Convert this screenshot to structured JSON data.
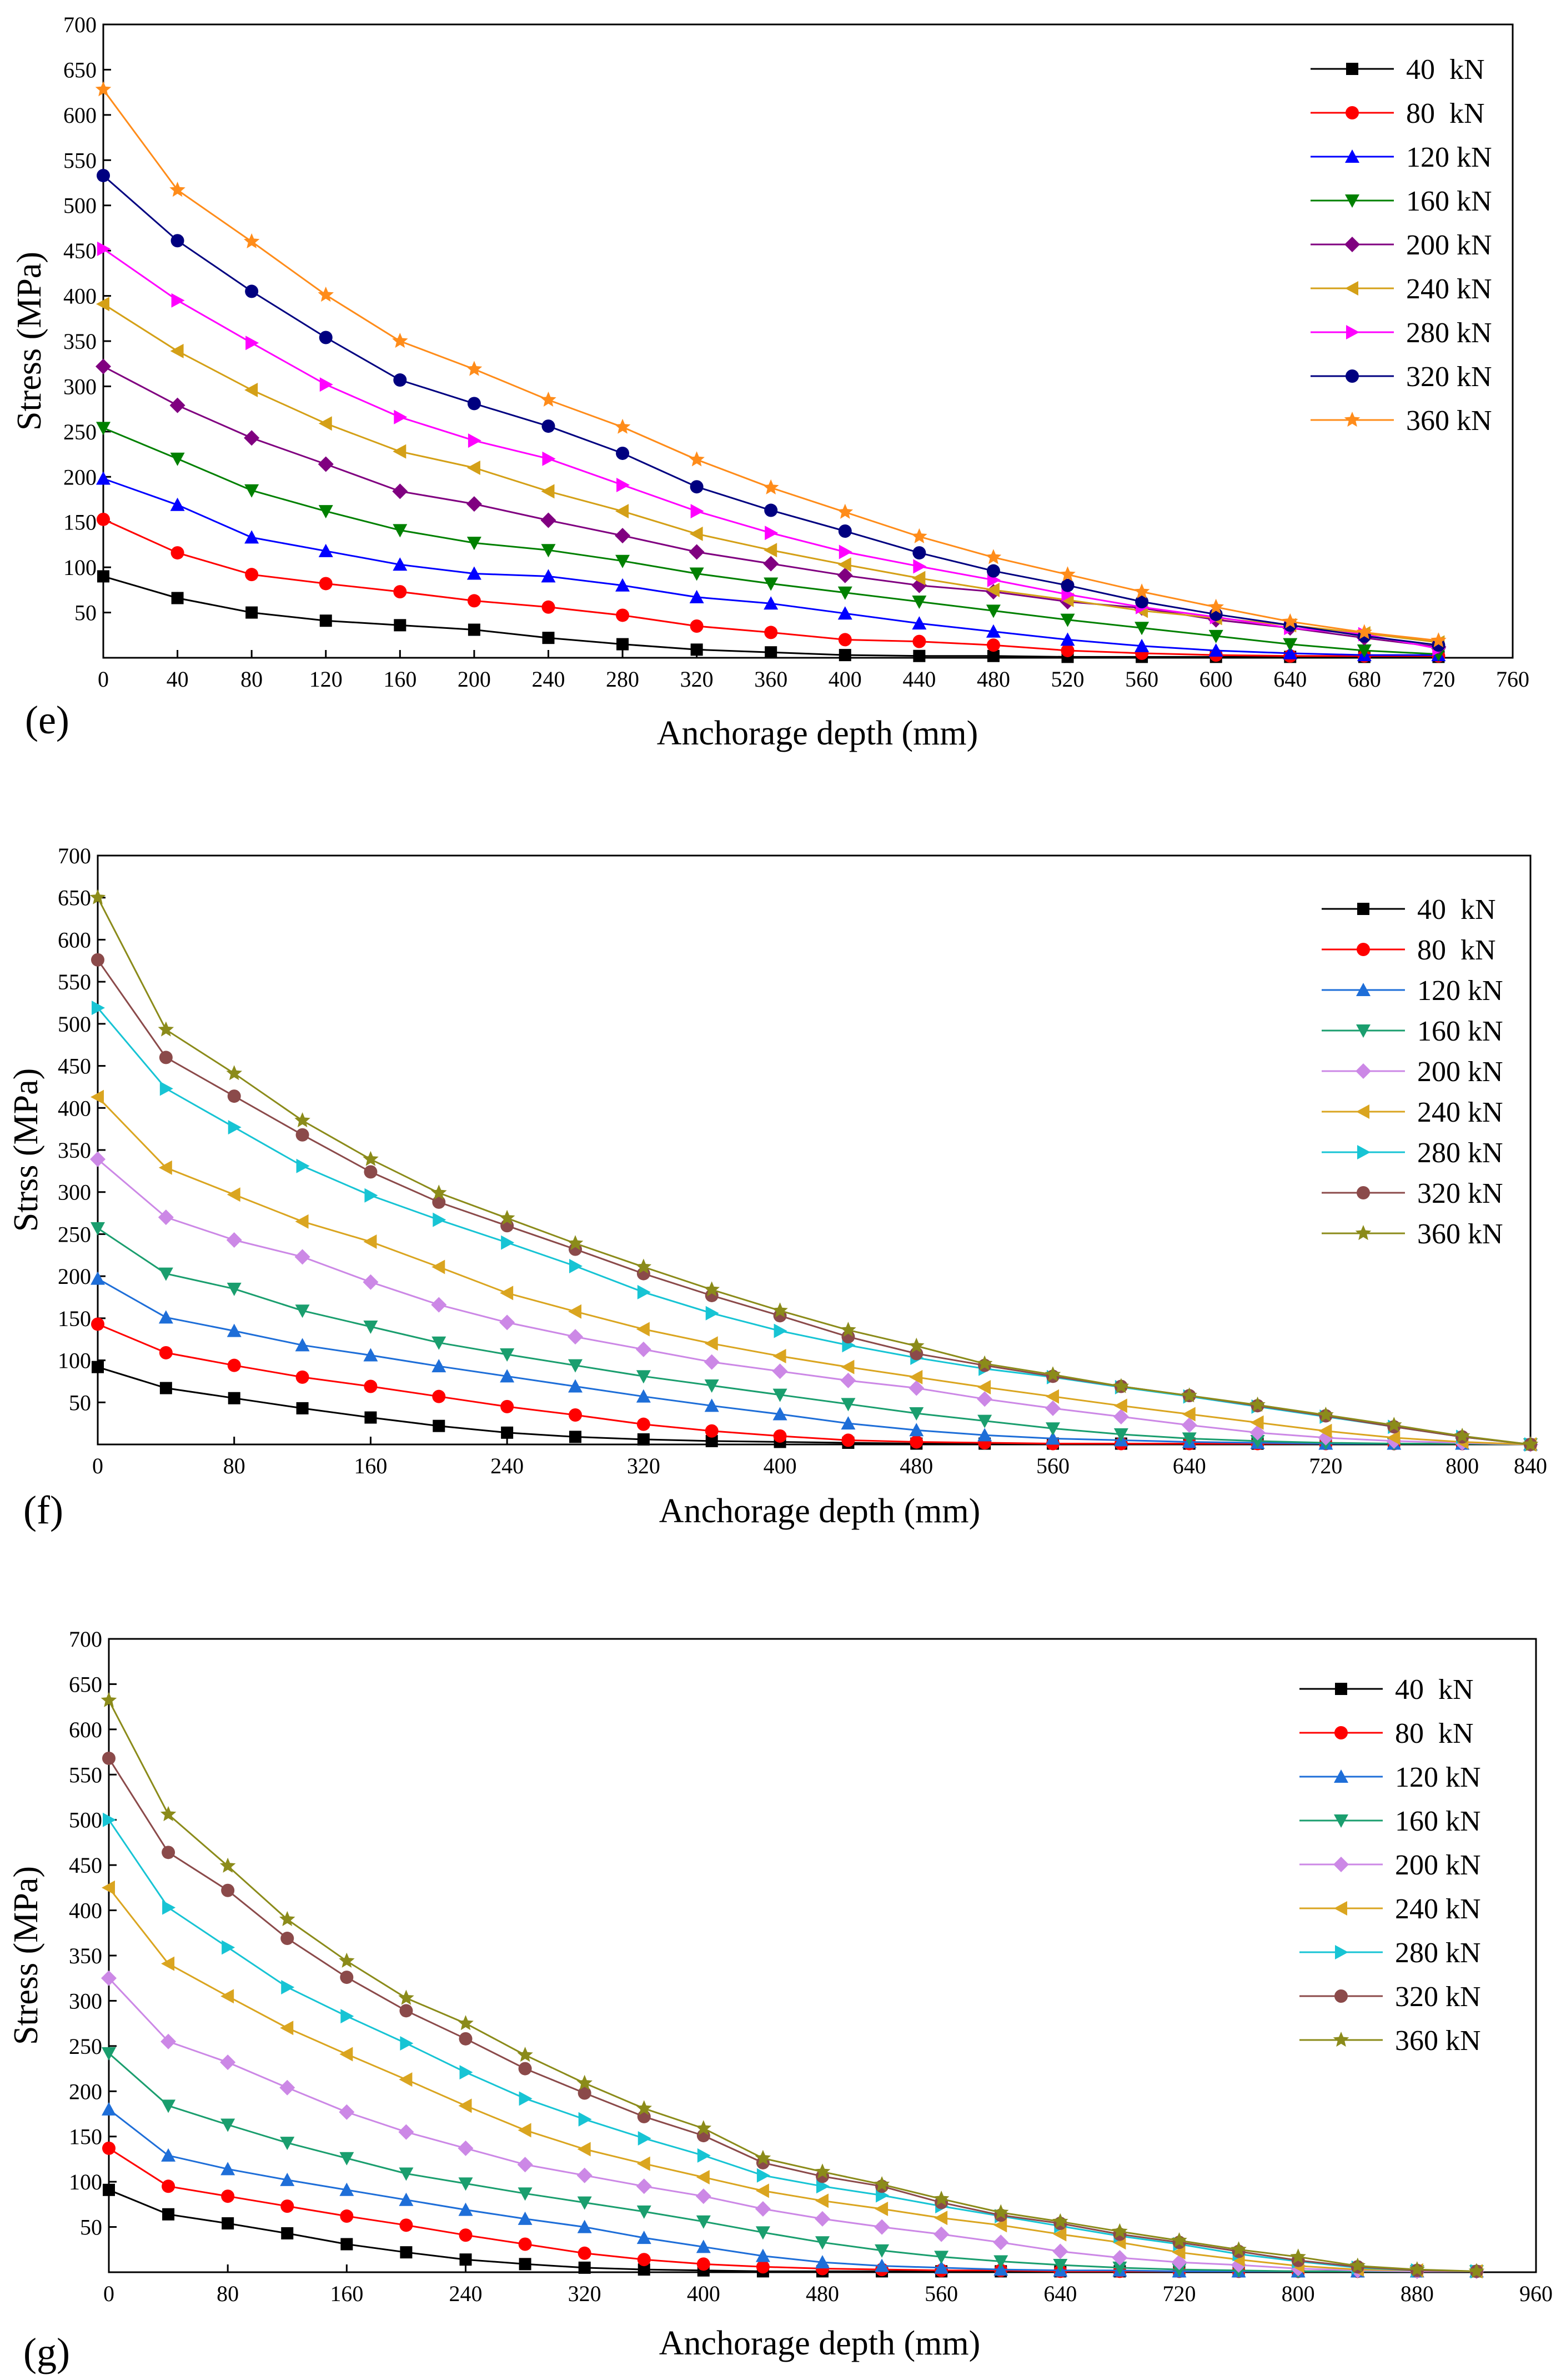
{
  "chart_data": [
    {
      "type": "line",
      "panel_label": "(e)",
      "xlabel": "Anchorage depth (mm)",
      "ylabel": "Stress (MPa)",
      "xlim": [
        0,
        760
      ],
      "ylim": [
        0,
        700
      ],
      "xticks": [
        0,
        40,
        80,
        120,
        160,
        200,
        240,
        280,
        320,
        360,
        400,
        440,
        480,
        520,
        560,
        600,
        640,
        680,
        720,
        760
      ],
      "yticks": [
        50,
        100,
        150,
        200,
        250,
        300,
        350,
        400,
        450,
        500,
        550,
        600,
        650,
        700
      ],
      "legend_position": "top-right",
      "x": [
        0,
        40,
        80,
        120,
        160,
        200,
        240,
        280,
        320,
        360,
        400,
        440,
        480,
        520,
        560,
        600,
        640,
        680,
        720
      ],
      "series": [
        {
          "name": "40  kN",
          "color": "#000000",
          "marker": "square",
          "values": [
            90,
            66,
            50,
            41,
            36,
            31,
            22,
            15,
            9,
            6,
            3,
            2,
            2,
            1,
            1,
            1,
            1,
            1,
            1
          ]
        },
        {
          "name": "80  kN",
          "color": "#ff0000",
          "marker": "circle",
          "values": [
            153,
            116,
            92,
            82,
            73,
            63,
            56,
            47,
            35,
            28,
            20,
            18,
            14,
            8,
            5,
            3,
            2,
            2,
            2
          ]
        },
        {
          "name": "120 kN",
          "color": "#0000ff",
          "marker": "triangle-up",
          "values": [
            198,
            169,
            133,
            118,
            103,
            93,
            90,
            80,
            67,
            60,
            49,
            38,
            29,
            20,
            13,
            8,
            5,
            3,
            3
          ]
        },
        {
          "name": "160 kN",
          "color": "#008000",
          "marker": "triangle-down",
          "values": [
            254,
            220,
            185,
            162,
            141,
            127,
            119,
            107,
            93,
            82,
            72,
            62,
            52,
            42,
            33,
            24,
            15,
            8,
            4
          ]
        },
        {
          "name": "200 kN",
          "color": "#800080",
          "marker": "diamond",
          "values": [
            322,
            279,
            243,
            214,
            184,
            170,
            152,
            135,
            117,
            104,
            91,
            80,
            73,
            62,
            55,
            42,
            33,
            22,
            12
          ]
        },
        {
          "name": "240 kN",
          "color": "#d4a017",
          "marker": "triangle-left",
          "values": [
            391,
            339,
            296,
            259,
            228,
            210,
            184,
            162,
            137,
            119,
            103,
            88,
            75,
            64,
            52,
            44,
            36,
            27,
            17
          ]
        },
        {
          "name": "280 kN",
          "color": "#ff00ff",
          "marker": "triangle-right",
          "values": [
            452,
            395,
            348,
            302,
            266,
            240,
            220,
            191,
            162,
            138,
            117,
            101,
            86,
            70,
            56,
            45,
            33,
            26,
            10
          ]
        },
        {
          "name": "320 kN",
          "color": "#000080",
          "marker": "circle",
          "values": [
            533,
            461,
            405,
            354,
            307,
            281,
            256,
            226,
            189,
            163,
            140,
            116,
            96,
            80,
            62,
            48,
            36,
            24,
            14
          ]
        },
        {
          "name": "360 kN",
          "color": "#ff8c1a",
          "marker": "star",
          "values": [
            628,
            517,
            460,
            401,
            350,
            319,
            285,
            255,
            219,
            188,
            161,
            134,
            111,
            92,
            73,
            56,
            40,
            28,
            19
          ]
        }
      ]
    },
    {
      "type": "line",
      "panel_label": "(f)",
      "xlabel": "Anchorage depth (mm)",
      "ylabel": "Strss (MPa)",
      "xlim": [
        0,
        840
      ],
      "ylim": [
        0,
        700
      ],
      "xticks": [
        0,
        80,
        160,
        240,
        320,
        400,
        480,
        560,
        640,
        720,
        800,
        840
      ],
      "yticks": [
        50,
        100,
        150,
        200,
        250,
        300,
        350,
        400,
        450,
        500,
        550,
        600,
        650,
        700
      ],
      "legend_position": "top-right",
      "x": [
        0,
        40,
        80,
        120,
        160,
        200,
        240,
        280,
        320,
        360,
        400,
        440,
        480,
        520,
        560,
        600,
        640,
        680,
        720,
        760,
        800,
        840
      ],
      "series": [
        {
          "name": "40  kN",
          "color": "#000000",
          "marker": "square",
          "values": [
            92,
            67,
            55,
            43,
            32,
            22,
            14,
            9,
            6,
            4,
            3,
            2,
            1,
            1,
            1,
            1,
            1,
            1,
            1,
            1,
            1,
            0
          ]
        },
        {
          "name": "80  kN",
          "color": "#ff0000",
          "marker": "circle",
          "values": [
            143,
            109,
            94,
            80,
            69,
            57,
            45,
            35,
            24,
            16,
            10,
            5,
            3,
            2,
            1,
            1,
            1,
            1,
            1,
            1,
            1,
            0
          ]
        },
        {
          "name": "120 kN",
          "color": "#1e6ed8",
          "marker": "triangle-up",
          "values": [
            197,
            151,
            135,
            118,
            106,
            93,
            81,
            69,
            57,
            46,
            36,
            25,
            17,
            11,
            7,
            5,
            3,
            2,
            1,
            1,
            1,
            0
          ]
        },
        {
          "name": "160 kN",
          "color": "#1a9e6e",
          "marker": "triangle-down",
          "values": [
            257,
            203,
            185,
            159,
            140,
            121,
            107,
            94,
            81,
            70,
            59,
            48,
            37,
            28,
            19,
            12,
            7,
            4,
            2,
            1,
            1,
            0
          ]
        },
        {
          "name": "200 kN",
          "color": "#cc88e6",
          "marker": "diamond",
          "values": [
            339,
            270,
            243,
            223,
            193,
            166,
            145,
            128,
            113,
            98,
            87,
            76,
            67,
            54,
            43,
            33,
            23,
            14,
            8,
            4,
            2,
            0
          ]
        },
        {
          "name": "240 kN",
          "color": "#daa520",
          "marker": "triangle-left",
          "values": [
            413,
            329,
            297,
            265,
            241,
            211,
            180,
            158,
            137,
            120,
            105,
            92,
            80,
            68,
            57,
            46,
            36,
            26,
            16,
            8,
            3,
            0
          ]
        },
        {
          "name": "280 kN",
          "color": "#17c4d4",
          "marker": "triangle-right",
          "values": [
            519,
            423,
            377,
            331,
            296,
            267,
            240,
            212,
            181,
            156,
            135,
            118,
            103,
            90,
            80,
            68,
            57,
            45,
            33,
            21,
            9,
            0
          ]
        },
        {
          "name": "320 kN",
          "color": "#8b4a4a",
          "marker": "circle",
          "values": [
            576,
            460,
            414,
            368,
            324,
            288,
            260,
            232,
            203,
            177,
            153,
            128,
            108,
            94,
            81,
            69,
            58,
            46,
            34,
            21,
            9,
            0
          ]
        },
        {
          "name": "360 kN",
          "color": "#8b8b1a",
          "marker": "star",
          "values": [
            650,
            493,
            441,
            385,
            339,
            299,
            269,
            239,
            211,
            184,
            159,
            136,
            117,
            96,
            83,
            69,
            58,
            47,
            35,
            23,
            10,
            0
          ]
        }
      ]
    },
    {
      "type": "line",
      "panel_label": "(g)",
      "xlabel": "Anchorage depth (mm)",
      "ylabel": "Stress (MPa)",
      "xlim": [
        0,
        960
      ],
      "ylim": [
        0,
        700
      ],
      "xticks": [
        0,
        80,
        160,
        240,
        320,
        400,
        480,
        560,
        640,
        720,
        800,
        880,
        960
      ],
      "yticks": [
        50,
        100,
        150,
        200,
        250,
        300,
        350,
        400,
        450,
        500,
        550,
        600,
        650,
        700
      ],
      "legend_position": "top-right",
      "x": [
        0,
        40,
        80,
        120,
        160,
        200,
        240,
        280,
        320,
        360,
        400,
        440,
        480,
        520,
        560,
        600,
        640,
        680,
        720,
        760,
        800,
        840,
        880,
        920
      ],
      "series": [
        {
          "name": "40  kN",
          "color": "#000000",
          "marker": "square",
          "values": [
            91,
            64,
            54,
            43,
            31,
            22,
            14,
            9,
            5,
            3,
            2,
            1,
            1,
            1,
            1,
            1,
            1,
            1,
            1,
            1,
            1,
            1,
            1,
            1
          ]
        },
        {
          "name": "80  kN",
          "color": "#ff0000",
          "marker": "circle",
          "values": [
            137,
            95,
            84,
            73,
            62,
            52,
            41,
            31,
            21,
            14,
            9,
            6,
            4,
            3,
            2,
            2,
            1,
            1,
            1,
            1,
            1,
            1,
            1,
            1
          ]
        },
        {
          "name": "120 kN",
          "color": "#1e6ed8",
          "marker": "triangle-up",
          "values": [
            180,
            129,
            114,
            102,
            91,
            80,
            69,
            59,
            50,
            38,
            28,
            18,
            11,
            7,
            5,
            3,
            2,
            2,
            1,
            1,
            1,
            1,
            1,
            1
          ]
        },
        {
          "name": "160 kN",
          "color": "#1a9e6e",
          "marker": "triangle-down",
          "values": [
            242,
            184,
            163,
            143,
            126,
            109,
            98,
            87,
            77,
            67,
            56,
            44,
            33,
            24,
            17,
            12,
            8,
            5,
            3,
            2,
            1,
            1,
            1,
            1
          ]
        },
        {
          "name": "200 kN",
          "color": "#cc88e6",
          "marker": "diamond",
          "values": [
            325,
            255,
            232,
            204,
            177,
            155,
            137,
            119,
            107,
            95,
            84,
            70,
            59,
            50,
            42,
            33,
            23,
            16,
            11,
            8,
            4,
            2,
            1,
            1
          ]
        },
        {
          "name": "240 kN",
          "color": "#daa520",
          "marker": "triangle-left",
          "values": [
            425,
            341,
            305,
            270,
            241,
            213,
            184,
            157,
            136,
            120,
            105,
            90,
            79,
            70,
            60,
            52,
            42,
            33,
            22,
            14,
            7,
            3,
            2,
            1
          ]
        },
        {
          "name": "280 kN",
          "color": "#17c4d4",
          "marker": "triangle-right",
          "values": [
            500,
            403,
            359,
            315,
            283,
            253,
            221,
            192,
            169,
            148,
            129,
            107,
            95,
            85,
            73,
            62,
            51,
            40,
            31,
            20,
            12,
            5,
            2,
            1
          ]
        },
        {
          "name": "320 kN",
          "color": "#8b4a4a",
          "marker": "circle",
          "values": [
            568,
            464,
            422,
            369,
            326,
            289,
            258,
            225,
            198,
            172,
            151,
            121,
            106,
            95,
            77,
            63,
            54,
            42,
            33,
            23,
            13,
            6,
            2,
            1
          ]
        },
        {
          "name": "360 kN",
          "color": "#8b8b1a",
          "marker": "star",
          "values": [
            632,
            506,
            449,
            390,
            344,
            303,
            275,
            240,
            209,
            181,
            159,
            126,
            111,
            97,
            81,
            66,
            56,
            45,
            35,
            25,
            17,
            7,
            3,
            1
          ]
        }
      ]
    }
  ]
}
